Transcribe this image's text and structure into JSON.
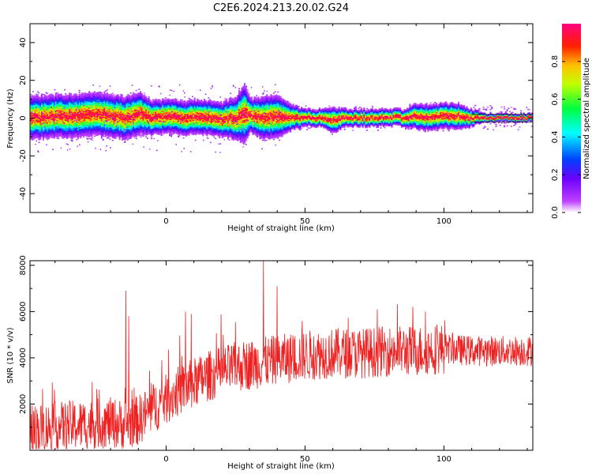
{
  "figure": {
    "title": "C2E6.2024.213.20.02.G24"
  },
  "colorbar": {
    "label": "Normalized spectral amplitude",
    "ticks": [
      "0.0",
      "0.2",
      "0.4",
      "0.6",
      "0.8"
    ],
    "tick_values": [
      0.0,
      0.2,
      0.4,
      0.6,
      0.8
    ],
    "range": [
      0,
      1
    ],
    "colors": [
      "#ffffff",
      "#a000ff",
      "#0000ff",
      "#00ffff",
      "#00ff00",
      "#ffff00",
      "#ff0000",
      "#ff0080"
    ]
  },
  "chart_data": [
    {
      "type": "heatmap",
      "title": "",
      "xlabel": "Height of straight line (km)",
      "ylabel": "Frequency (Hz)",
      "xlim": [
        -49,
        132
      ],
      "ylim": [
        -50,
        50
      ],
      "xticks": [
        0,
        50,
        100
      ],
      "xtick_labels": [
        "0",
        "50",
        "100"
      ],
      "yticks": [
        -40,
        -20,
        0,
        20,
        40
      ],
      "ytick_labels": [
        "-40",
        "-20",
        "0",
        "20",
        "40"
      ],
      "grid": false,
      "ridge": {
        "x": [
          -49,
          -40,
          -30,
          -25,
          -20,
          -15,
          -10,
          -5,
          0,
          5,
          10,
          15,
          20,
          25,
          28,
          30,
          35,
          40,
          45,
          50,
          55,
          60,
          65,
          70,
          75,
          80,
          85,
          90,
          95,
          100,
          105,
          110,
          115,
          120,
          125,
          132
        ],
        "y": [
          0,
          1,
          1,
          2,
          1,
          0,
          2,
          0,
          1,
          0,
          0,
          0,
          -1,
          0,
          2,
          1,
          0,
          1,
          0,
          0,
          0,
          -1,
          0,
          0,
          0,
          0,
          0,
          1,
          0,
          1,
          1,
          0,
          0,
          0,
          0,
          0
        ],
        "spread": [
          5,
          5,
          5,
          5,
          5,
          5,
          5,
          4,
          4,
          4,
          4,
          4,
          4,
          5,
          7,
          4,
          5,
          5,
          3,
          2,
          2,
          3,
          2,
          2,
          2,
          2,
          2,
          3,
          3,
          3,
          3,
          2,
          1,
          1,
          1,
          1
        ]
      }
    },
    {
      "type": "line",
      "title": "",
      "xlabel": "Height of straight line (km)",
      "ylabel": "SNR (10 * v/v)",
      "xlim": [
        -49,
        132
      ],
      "ylim": [
        0,
        8200
      ],
      "xticks": [
        0,
        50,
        100
      ],
      "xtick_labels": [
        "0",
        "50",
        "100"
      ],
      "yticks": [
        2000,
        4000,
        6000,
        8000
      ],
      "ytick_labels": [
        "2000",
        "4000",
        "6000",
        "8000"
      ],
      "grid": false,
      "series": [
        {
          "color": "#ee2020",
          "trend": {
            "x": [
              -49,
              -40,
              -30,
              -20,
              -15,
              -10,
              -5,
              0,
              5,
              10,
              15,
              20,
              25,
              30,
              35,
              40,
              45,
              50,
              60,
              70,
              80,
              90,
              100,
              110,
              120,
              132
            ],
            "y": [
              900,
              1000,
              1100,
              1200,
              1100,
              1300,
              1800,
              2200,
              2600,
              2900,
              3200,
              3400,
              3600,
              3700,
              3800,
              3900,
              4000,
              4100,
              4200,
              4200,
              4300,
              4300,
              4400,
              4300,
              4300,
              4300
            ]
          },
          "noise_amplitude": 1100,
          "spikes": [
            {
              "x": -14.5,
              "y": 6900
            },
            {
              "x": -13.5,
              "y": 5800
            },
            {
              "x": 7,
              "y": 6000
            },
            {
              "x": 9,
              "y": 5900
            },
            {
              "x": 35,
              "y": 8200
            },
            {
              "x": 40,
              "y": 7100
            },
            {
              "x": 49,
              "y": 5600
            }
          ]
        }
      ]
    }
  ]
}
